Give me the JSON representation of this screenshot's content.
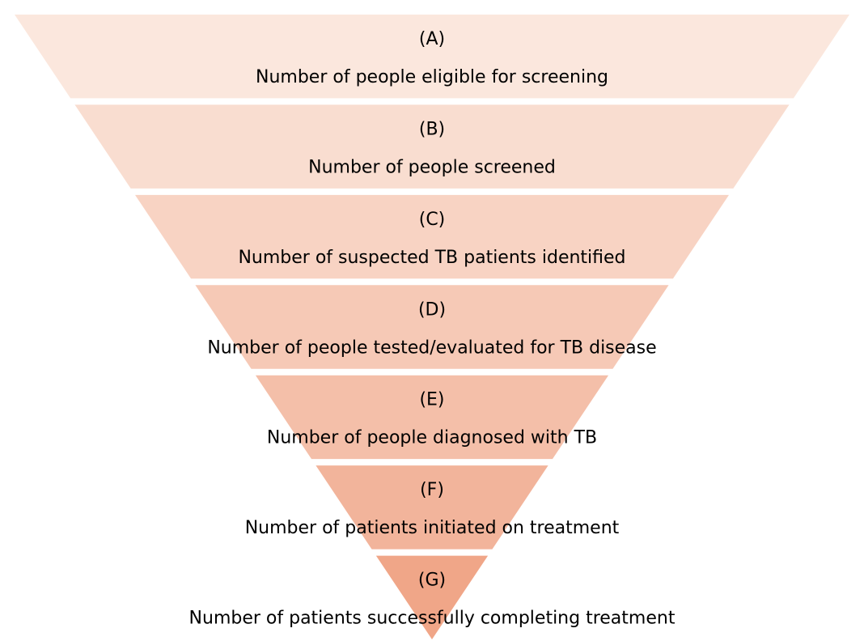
{
  "levels": [
    {
      "label": "(A)",
      "text": "Number of people eligible for screening"
    },
    {
      "label": "(B)",
      "text": "Number of people screened"
    },
    {
      "label": "(C)",
      "text": "Number of suspected TB patients identified"
    },
    {
      "label": "(D)",
      "text": "Number of people tested/evaluated for TB disease"
    },
    {
      "label": "(E)",
      "text": "Number of people diagnosed with TB"
    },
    {
      "label": "(F)",
      "text": "Number of patients initiated on treatment"
    },
    {
      "label": "(G)",
      "text": "Number of patients successfully completing treatment"
    }
  ]
}
